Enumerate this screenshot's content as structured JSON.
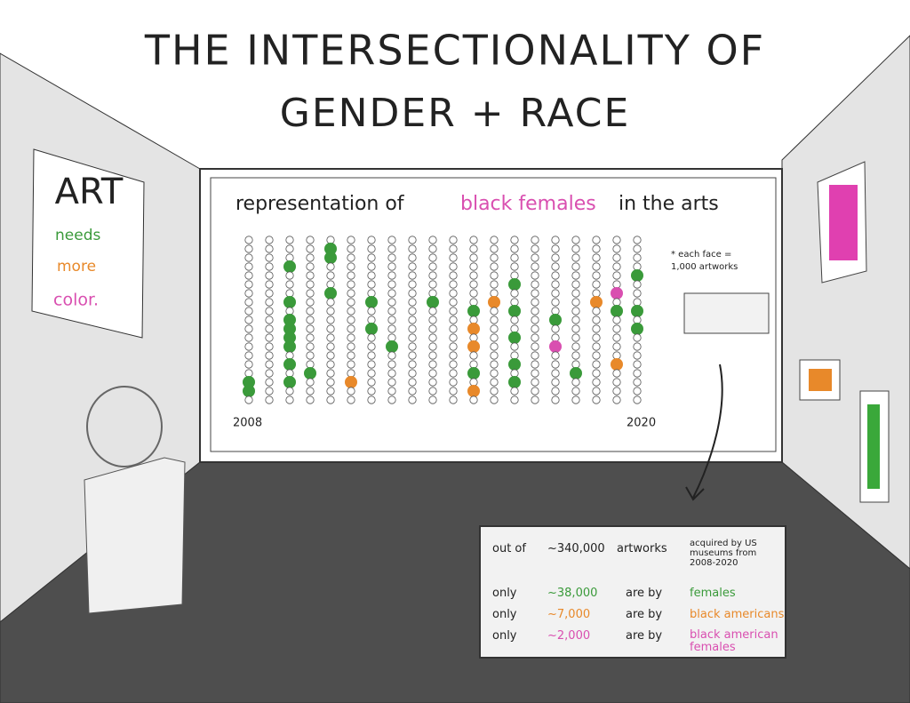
{
  "title": {
    "line1": "THE INTERSECTIONALITY OF",
    "line2": "GENDER + RACE"
  },
  "poster": {
    "heading": "ART",
    "lines": [
      "needs",
      "more",
      "color."
    ]
  },
  "wall_chart": {
    "title_parts": [
      "representation of",
      "black females",
      "in the arts"
    ],
    "note": "* each face = 1,000 artworks",
    "start_label": "2008",
    "end_label": "2020"
  },
  "panel": {
    "intro": [
      "out of",
      "~340,000",
      "artworks",
      "acquired by US museums from 2008-2020"
    ],
    "rows": [
      {
        "label": "only",
        "amount": "~38,000",
        "verb": "are by",
        "group": "females"
      },
      {
        "label": "only",
        "amount": "~7,000",
        "verb": "are by",
        "group": "black americans"
      },
      {
        "label": "only",
        "amount": "~2,000",
        "verb": "are by",
        "group": "black american females"
      }
    ]
  }
}
